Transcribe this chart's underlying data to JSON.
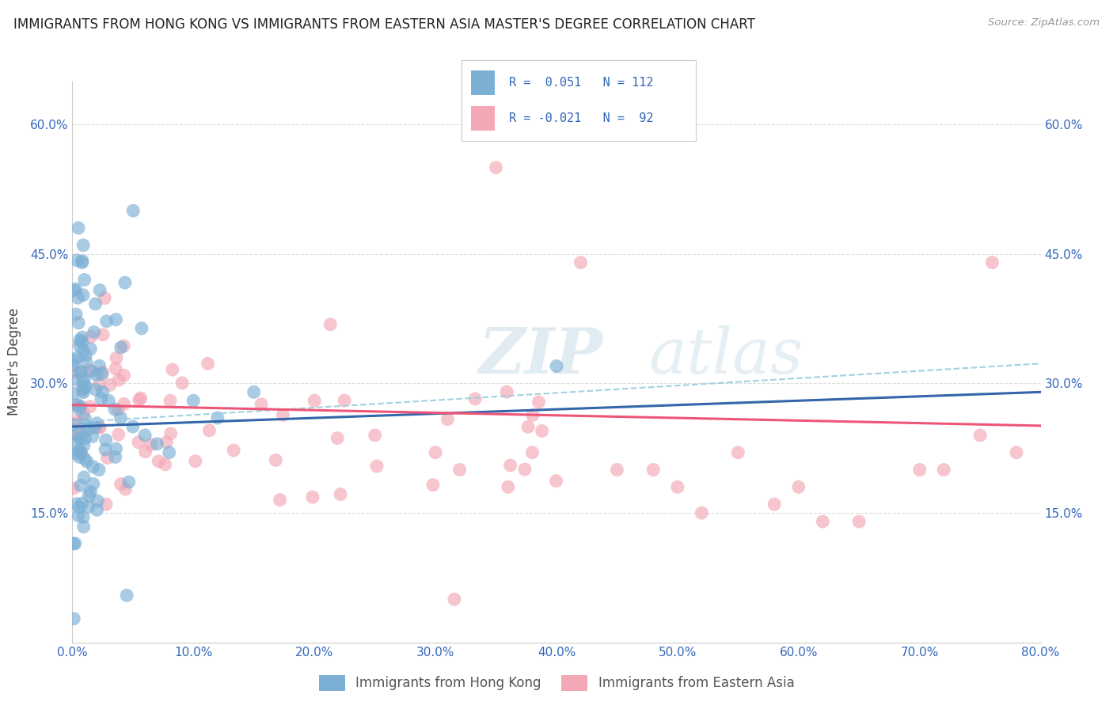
{
  "title": "IMMIGRANTS FROM HONG KONG VS IMMIGRANTS FROM EASTERN ASIA MASTER'S DEGREE CORRELATION CHART",
  "source": "Source: ZipAtlas.com",
  "ylabel": "Master's Degree",
  "xlim": [
    0.0,
    80.0
  ],
  "ylim": [
    0.0,
    65.0
  ],
  "xticks": [
    0.0,
    10.0,
    20.0,
    30.0,
    40.0,
    50.0,
    60.0,
    70.0,
    80.0
  ],
  "ytick_positions": [
    0,
    15,
    30,
    45,
    60
  ],
  "right_ytick_positions": [
    15,
    30,
    45,
    60
  ],
  "color_blue": "#7BAFD4",
  "color_pink": "#F4A7B4",
  "color_blue_line": "#3366AA",
  "color_pink_line": "#EE5577",
  "color_blue_dashed": "#99CCDD",
  "label1": "Immigrants from Hong Kong",
  "label2": "Immigrants from Eastern Asia",
  "watermark_zip": "ZIP",
  "watermark_atlas": "atlas",
  "grid_color": "#DDDDDD",
  "bg_color": "#FFFFFF",
  "axis_color": "#3366BB",
  "title_color": "#222222",
  "source_color": "#999999",
  "ylabel_color": "#444444",
  "blue_intercept": 25.0,
  "blue_slope": 0.05,
  "pink_intercept": 27.5,
  "pink_slope": -0.03,
  "dash_intercept": 25.5,
  "dash_slope": 0.085
}
